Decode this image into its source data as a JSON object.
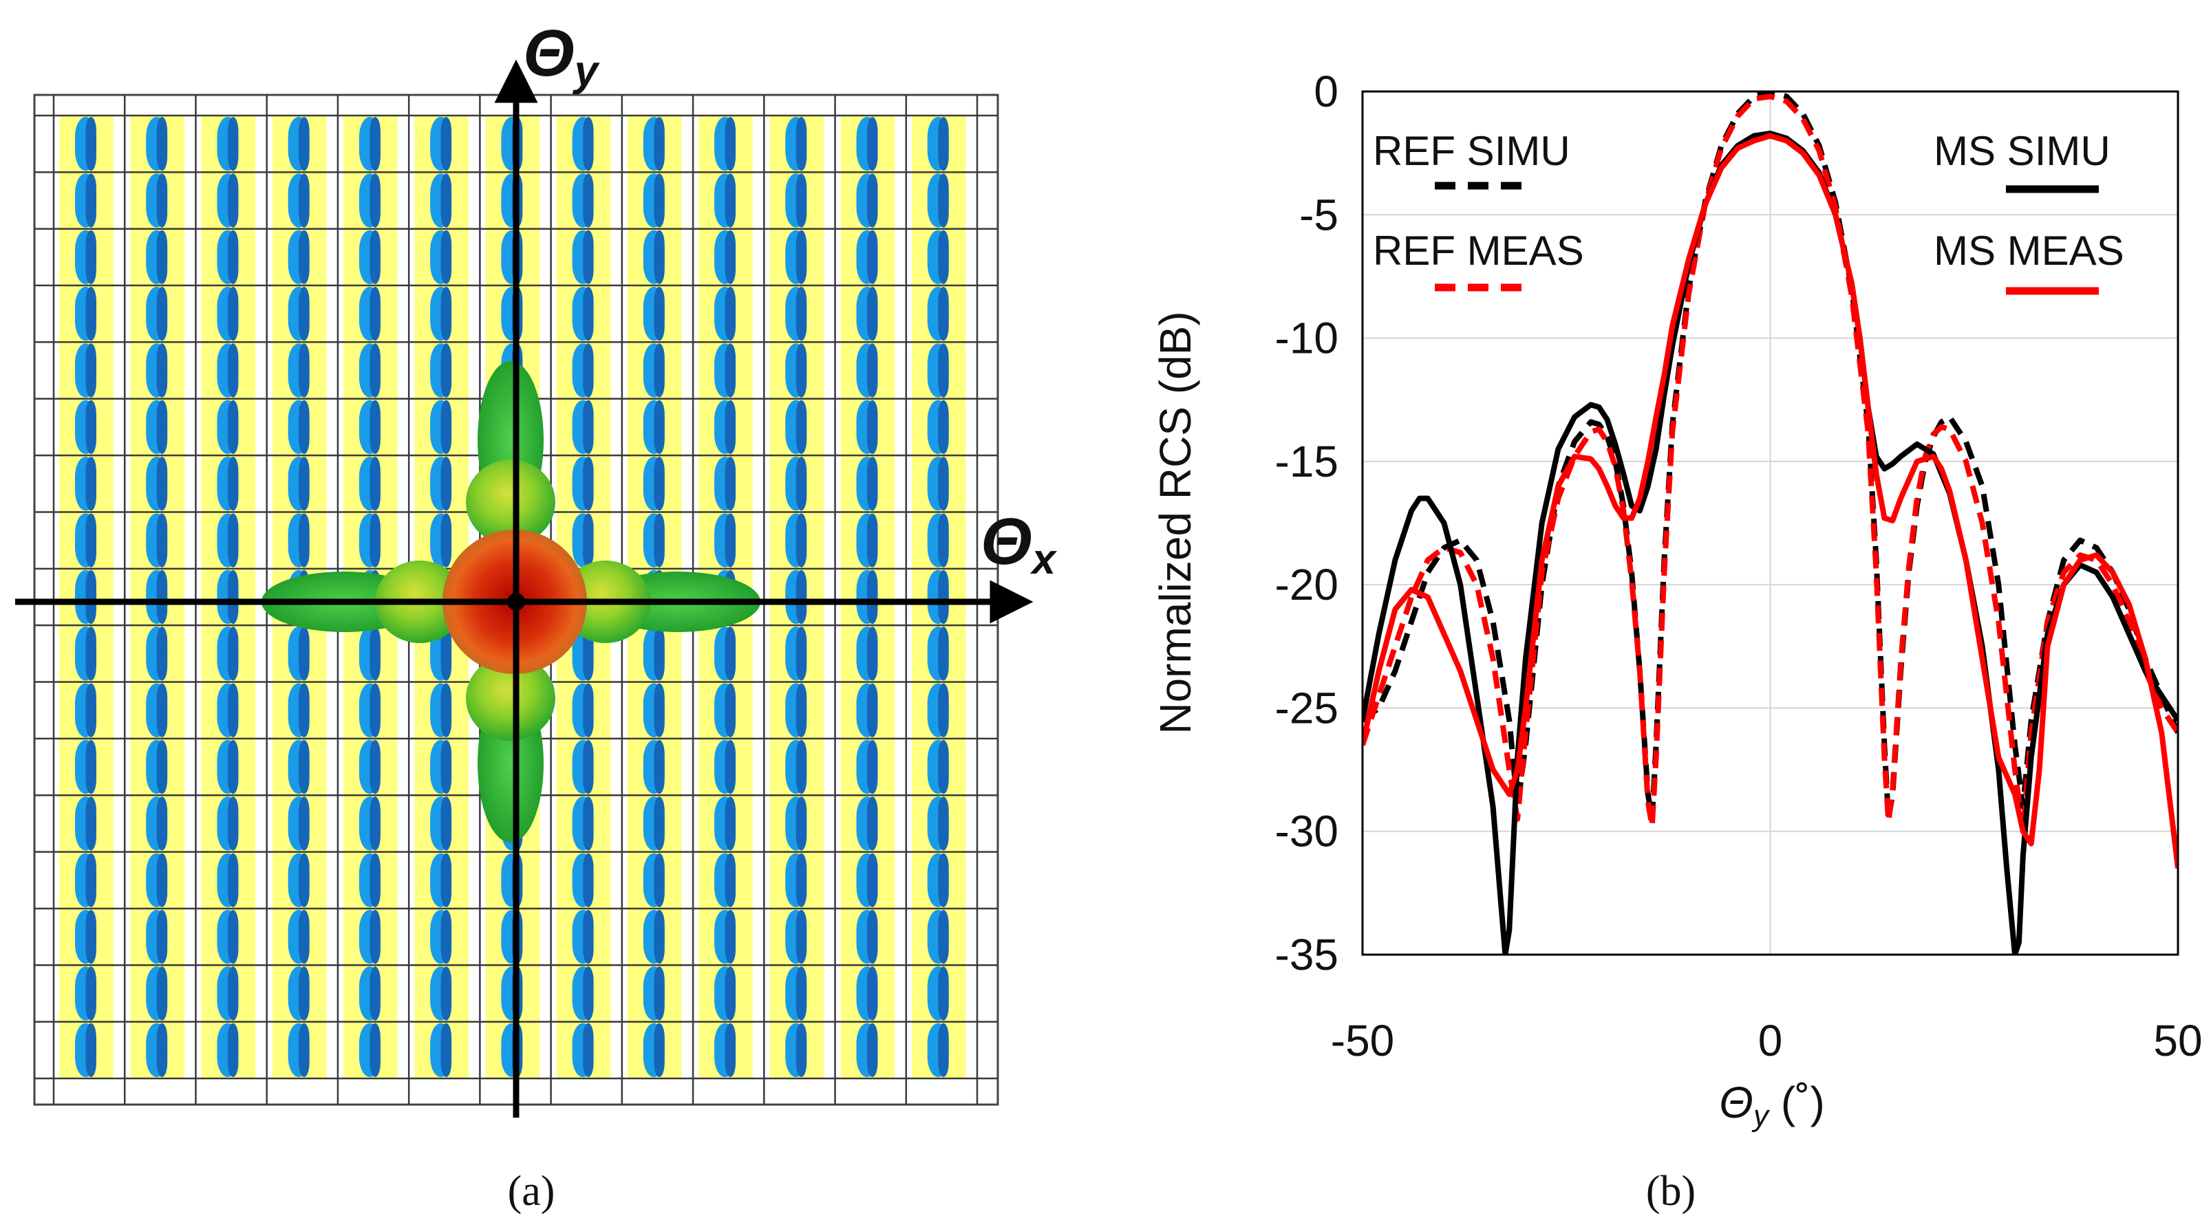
{
  "panel_a": {
    "caption": "(a)",
    "axis_x_label": "Θ",
    "axis_x_sub": "x",
    "axis_y_label": "Θ",
    "axis_y_sub": "y",
    "grid_columns": 13,
    "grid_rows": 17,
    "colors": {
      "background_strip": "#ffff80",
      "element_light": "#1a9be8",
      "element_dark": "#1566b8",
      "lobe_core": "#cc1a00",
      "lobe_mid": "#e36b1a",
      "lobe_outer": "#3fbf2a",
      "lobe_side": "#8bd12a"
    }
  },
  "panel_b": {
    "caption": "(b)",
    "chart_data": {
      "type": "line",
      "title": "",
      "xlabel_symbol": "Θ",
      "xlabel_sub": "y",
      "xlabel_unit": " (˚)",
      "ylabel": "Normalized RCS (dB)",
      "xlim": [
        -50,
        50
      ],
      "ylim": [
        -35,
        0
      ],
      "xticks": [
        -50,
        0,
        50
      ],
      "yticks": [
        0,
        -5,
        -10,
        -15,
        -20,
        -25,
        -30,
        -35
      ],
      "grid": true,
      "legend": [
        {
          "label": "REF SIMU",
          "series": 0,
          "placement": "top-left"
        },
        {
          "label": "REF MEAS",
          "series": 1,
          "placement": "top-left"
        },
        {
          "label": "MS SIMU",
          "series": 2,
          "placement": "top-right"
        },
        {
          "label": "MS MEAS",
          "series": 3,
          "placement": "top-right"
        }
      ],
      "series": [
        {
          "name": "REF SIMU",
          "color": "#000000",
          "dash": true,
          "x": [
            -50,
            -48,
            -46,
            -44,
            -42,
            -40,
            -38,
            -36,
            -34,
            -32,
            -31,
            -30,
            -28,
            -26,
            -24,
            -22,
            -21,
            -20,
            -19,
            -18,
            -17,
            -16,
            -15,
            -14.5,
            -14,
            -13,
            -12,
            -10,
            -8,
            -6,
            -4,
            -2,
            0,
            2,
            4,
            6,
            8,
            10,
            12,
            13,
            14,
            14.5,
            15,
            16,
            17,
            18,
            19,
            20,
            21,
            22,
            24,
            26,
            28,
            30,
            31,
            32,
            34,
            36,
            38,
            40,
            42,
            44,
            46,
            48,
            50
          ],
          "y": [
            -25.5,
            -25,
            -23.5,
            -21.5,
            -19.5,
            -18.5,
            -18.2,
            -19,
            -21.5,
            -25.5,
            -29,
            -26.5,
            -20,
            -16,
            -14.2,
            -13.4,
            -13.5,
            -14,
            -15,
            -16.8,
            -19.5,
            -23.5,
            -28.5,
            -29.5,
            -26.5,
            -19,
            -13.5,
            -8,
            -4.5,
            -2.2,
            -0.9,
            -0.2,
            0,
            -0.2,
            -0.9,
            -2.2,
            -4.5,
            -8,
            -13.5,
            -19,
            -26.5,
            -29.5,
            -28.5,
            -23.5,
            -19.5,
            -16.8,
            -15,
            -14,
            -13.4,
            -13.2,
            -14.2,
            -16,
            -20,
            -26.5,
            -29,
            -25.5,
            -21.5,
            -19,
            -18.2,
            -18.5,
            -19.5,
            -21,
            -23,
            -24.5,
            -26
          ]
        },
        {
          "name": "REF MEAS",
          "color": "#ff0000",
          "dash": true,
          "x": [
            -50,
            -48,
            -46,
            -44,
            -42,
            -40,
            -38,
            -36,
            -34,
            -32,
            -31,
            -30,
            -28,
            -26,
            -24,
            -22,
            -21,
            -20,
            -19,
            -18,
            -17,
            -16,
            -15,
            -14.5,
            -14,
            -13,
            -12,
            -10,
            -8,
            -6,
            -4,
            -2,
            0,
            2,
            4,
            6,
            8,
            10,
            12,
            13,
            14,
            14.5,
            15,
            16,
            17,
            18,
            19,
            20,
            21,
            22,
            24,
            26,
            28,
            30,
            31,
            32,
            34,
            36,
            38,
            40,
            42,
            44,
            46,
            48,
            50
          ],
          "y": [
            -26.5,
            -24.5,
            -22.5,
            -20.5,
            -19,
            -18.5,
            -18.7,
            -20,
            -23,
            -27.5,
            -29.5,
            -26,
            -19.5,
            -16.5,
            -14.8,
            -13.8,
            -13.7,
            -14.2,
            -15.2,
            -17,
            -19.8,
            -23.5,
            -28.8,
            -29.8,
            -27,
            -19.5,
            -13.8,
            -8.2,
            -4.6,
            -2.3,
            -1,
            -0.3,
            -0.2,
            -0.4,
            -1.1,
            -2.4,
            -4.7,
            -8.3,
            -13.8,
            -19.5,
            -27,
            -29.6,
            -28.3,
            -23.2,
            -19.3,
            -16.5,
            -14.8,
            -13.9,
            -13.6,
            -13.7,
            -15,
            -17.5,
            -21.5,
            -27.5,
            -30,
            -26,
            -21.5,
            -19.5,
            -18.8,
            -19,
            -20,
            -21.5,
            -23.5,
            -25,
            -26
          ]
        },
        {
          "name": "MS SIMU",
          "color": "#000000",
          "dash": false,
          "x": [
            -50,
            -48,
            -46,
            -44,
            -43,
            -42,
            -40,
            -38,
            -36,
            -34,
            -33,
            -32.5,
            -32,
            -31,
            -30,
            -28,
            -26,
            -24,
            -22,
            -21,
            -20,
            -19,
            -18,
            -17,
            -16,
            -15,
            -14,
            -13,
            -12,
            -10,
            -8,
            -6,
            -4,
            -2,
            0,
            2,
            4,
            6,
            8,
            10,
            11,
            12,
            13,
            14,
            15,
            16,
            18,
            20,
            21,
            22,
            24,
            26,
            28,
            29,
            30,
            30.5,
            31,
            32,
            34,
            36,
            38,
            40,
            42,
            44,
            46,
            48,
            50
          ],
          "y": [
            -25.5,
            -22,
            -19,
            -17,
            -16.5,
            -16.5,
            -17.5,
            -20,
            -24.5,
            -29,
            -33,
            -35,
            -34,
            -27,
            -23,
            -17.5,
            -14.5,
            -13.2,
            -12.7,
            -12.8,
            -13.3,
            -14.3,
            -15.5,
            -16.8,
            -17,
            -16,
            -14.5,
            -12.3,
            -10.3,
            -7,
            -4.6,
            -3,
            -2.2,
            -1.8,
            -1.7,
            -1.9,
            -2.4,
            -3.3,
            -5,
            -7.8,
            -10,
            -12.8,
            -14.8,
            -15.3,
            -15.1,
            -14.8,
            -14.3,
            -14.7,
            -15.5,
            -16.3,
            -19,
            -22.5,
            -27.5,
            -31.5,
            -35,
            -34.5,
            -31,
            -27,
            -22,
            -20,
            -19.2,
            -19.5,
            -20.5,
            -22,
            -23.5,
            -24.5,
            -25.5
          ]
        },
        {
          "name": "MS MEAS",
          "color": "#ff0000",
          "dash": false,
          "x": [
            -50,
            -48,
            -46,
            -44,
            -42,
            -40,
            -38,
            -36,
            -34,
            -32,
            -31,
            -30,
            -28,
            -26,
            -24,
            -22,
            -21,
            -20,
            -19,
            -18,
            -17,
            -16,
            -15,
            -14,
            -13,
            -12,
            -10,
            -8,
            -6,
            -4,
            -2,
            0,
            2,
            4,
            6,
            8,
            10,
            11,
            12,
            13,
            14,
            15,
            16,
            18,
            20,
            21,
            22,
            24,
            26,
            28,
            30,
            31,
            32,
            33,
            34,
            36,
            38,
            40,
            42,
            44,
            46,
            48,
            50
          ],
          "y": [
            -26.5,
            -23.5,
            -21,
            -20.2,
            -20.5,
            -22,
            -23.5,
            -25.5,
            -27.5,
            -28.5,
            -27.5,
            -25,
            -19,
            -16,
            -14.8,
            -14.9,
            -15.3,
            -16,
            -16.8,
            -17.3,
            -17.3,
            -16.5,
            -15,
            -13.2,
            -11.5,
            -9.5,
            -6.8,
            -4.6,
            -3.1,
            -2.3,
            -2,
            -1.8,
            -2,
            -2.5,
            -3.4,
            -5,
            -7.8,
            -10,
            -12.8,
            -15.5,
            -17.3,
            -17.4,
            -16.5,
            -15,
            -14.8,
            -15.3,
            -16.2,
            -19,
            -23,
            -27,
            -28.5,
            -30,
            -30.5,
            -27.5,
            -22.5,
            -20,
            -19,
            -18.8,
            -19.5,
            -20.8,
            -23,
            -26,
            -31.5
          ]
        }
      ]
    }
  }
}
